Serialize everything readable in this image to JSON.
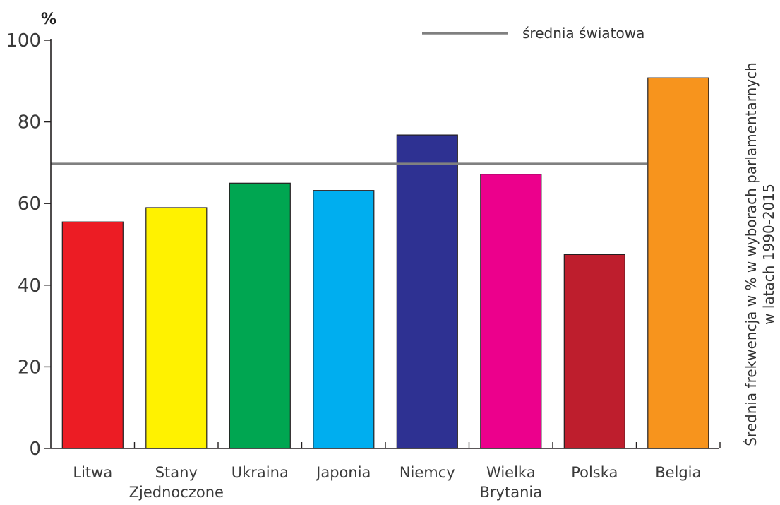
{
  "chart_data": {
    "type": "bar",
    "categories": [
      [
        "Litwa"
      ],
      [
        "Stany",
        "Zjednoczone"
      ],
      [
        "Ukraina"
      ],
      [
        "Japonia"
      ],
      [
        "Niemcy"
      ],
      [
        "Wielka",
        "Brytania"
      ],
      [
        "Polska"
      ],
      [
        "Belgia"
      ]
    ],
    "values": [
      55.5,
      59,
      65,
      63.2,
      76.8,
      67.2,
      47.5,
      90.8
    ],
    "colors": [
      "#ec1c24",
      "#fff200",
      "#00a651",
      "#00aeef",
      "#2e3192",
      "#ec008c",
      "#be1e2d",
      "#f7941d"
    ],
    "reference_line": {
      "label": "średnia światowa",
      "value": 69.7,
      "color": "#808080"
    },
    "y_unit": "%",
    "ylabel": [
      "Średnia frekwencja w % w wyborach parlamentarnych",
      "w latach 1990-2015"
    ],
    "ylim": [
      0,
      100
    ],
    "yticks": [
      0,
      20,
      40,
      60,
      80,
      100
    ],
    "grid": false,
    "legend_position": "top-right"
  }
}
